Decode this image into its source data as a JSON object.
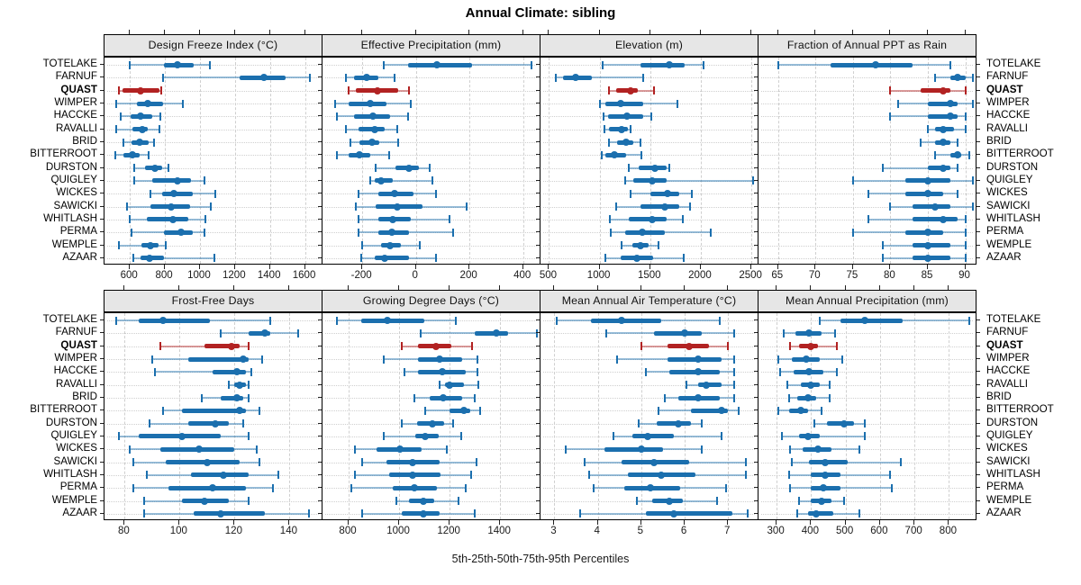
{
  "title": "Annual Climate: sibling",
  "caption": "5th-25th-50th-75th-95th Percentiles",
  "colors": {
    "normal": "#1b6fae",
    "normal_light": "rgba(27,111,174,0.45)",
    "highlight": "#b22222",
    "highlight_light": "rgba(178,34,34,0.45)",
    "strip_bg": "#e6e6e6",
    "grid": "#cfcfcf",
    "border": "#000000"
  },
  "stations": [
    "TOTELAKE",
    "FARNUF",
    "QUAST",
    "WIMPER",
    "HACCKE",
    "RAVALLI",
    "BRID",
    "BITTERROOT",
    "DURSTON",
    "QUIGLEY",
    "WICKES",
    "SAWICKI",
    "WHITLASH",
    "PERMA",
    "WEMPLE",
    "AZAAR"
  ],
  "highlight_station": "QUAST",
  "chart_data": {
    "type": "percentile-dotplot",
    "percentiles": [
      5,
      25,
      50,
      75,
      95
    ],
    "layout": {
      "rows": 2,
      "cols": 4
    },
    "grid": true,
    "panels": [
      {
        "title": "Design Freeze Index (°C)",
        "ticks": [
          600,
          800,
          1000,
          1200,
          1400,
          1600
        ],
        "xlim": [
          460,
          1700
        ],
        "values": [
          [
            600,
            795,
            870,
            965,
            1055
          ],
          [
            790,
            1225,
            1365,
            1490,
            1630
          ],
          [
            535,
            560,
            660,
            770,
            780
          ],
          [
            520,
            640,
            700,
            790,
            905
          ],
          [
            545,
            605,
            660,
            730,
            775
          ],
          [
            520,
            615,
            670,
            700,
            770
          ],
          [
            565,
            610,
            655,
            705,
            740
          ],
          [
            515,
            565,
            615,
            655,
            705
          ],
          [
            625,
            685,
            745,
            785,
            820
          ],
          [
            625,
            725,
            870,
            950,
            1025
          ],
          [
            715,
            785,
            850,
            960,
            1090
          ],
          [
            585,
            715,
            835,
            945,
            1060
          ],
          [
            600,
            695,
            845,
            935,
            1030
          ],
          [
            610,
            795,
            890,
            960,
            1025
          ],
          [
            535,
            665,
            715,
            765,
            805
          ],
          [
            620,
            660,
            710,
            795,
            1080
          ]
        ]
      },
      {
        "title": "Effective Precipitation (mm)",
        "ticks": [
          -200,
          0,
          200,
          400
        ],
        "xlim": [
          -345,
          465
        ],
        "values": [
          [
            -120,
            -30,
            80,
            210,
            430
          ],
          [
            -260,
            -230,
            -185,
            -140,
            -80
          ],
          [
            -250,
            -225,
            -145,
            -65,
            -25
          ],
          [
            -300,
            -250,
            -170,
            -110,
            -20
          ],
          [
            -295,
            -230,
            -160,
            -95,
            -30
          ],
          [
            -260,
            -215,
            -155,
            -115,
            -70
          ],
          [
            -245,
            -210,
            -165,
            -135,
            -65
          ],
          [
            -295,
            -250,
            -210,
            -170,
            -100
          ],
          [
            -150,
            -75,
            -25,
            10,
            50
          ],
          [
            -170,
            -155,
            -130,
            -85,
            60
          ],
          [
            -215,
            -140,
            -80,
            -10,
            75
          ],
          [
            -225,
            -150,
            -70,
            25,
            190
          ],
          [
            -215,
            -140,
            -85,
            -20,
            125
          ],
          [
            -215,
            -140,
            -90,
            -25,
            140
          ],
          [
            -200,
            -130,
            -95,
            -55,
            15
          ],
          [
            -205,
            -155,
            -115,
            -25,
            75
          ]
        ]
      },
      {
        "title": "Elevation (m)",
        "ticks": [
          500,
          1000,
          1500,
          2000,
          2500
        ],
        "xlim": [
          425,
          2570
        ],
        "values": [
          [
            1030,
            1400,
            1690,
            1840,
            2030
          ],
          [
            570,
            640,
            760,
            920,
            1430
          ],
          [
            1090,
            1160,
            1310,
            1380,
            1540
          ],
          [
            1000,
            1060,
            1210,
            1430,
            1770
          ],
          [
            1040,
            1080,
            1270,
            1430,
            1510
          ],
          [
            1050,
            1090,
            1220,
            1280,
            1310
          ],
          [
            1090,
            1170,
            1260,
            1330,
            1400
          ],
          [
            1020,
            1060,
            1150,
            1260,
            1410
          ],
          [
            1290,
            1390,
            1550,
            1660,
            1690
          ],
          [
            1250,
            1330,
            1520,
            1660,
            2520
          ],
          [
            1310,
            1500,
            1670,
            1790,
            1910
          ],
          [
            1160,
            1400,
            1640,
            1790,
            1890
          ],
          [
            1100,
            1290,
            1520,
            1660,
            1820
          ],
          [
            1110,
            1250,
            1420,
            1640,
            2100
          ],
          [
            1220,
            1320,
            1400,
            1480,
            1580
          ],
          [
            1060,
            1210,
            1370,
            1530,
            1830
          ]
        ]
      },
      {
        "title": "Fraction of Annual PPT as Rain",
        "ticks": [
          65,
          70,
          75,
          80,
          85,
          90
        ],
        "xlim": [
          62.5,
          91.5
        ],
        "values": [
          [
            65,
            72,
            78,
            83,
            88
          ],
          [
            86,
            88,
            89,
            90,
            91
          ],
          [
            80,
            84,
            87,
            88,
            90
          ],
          [
            81,
            85,
            88,
            89,
            91
          ],
          [
            80,
            85,
            88,
            89,
            90
          ],
          [
            85,
            86,
            87,
            88.5,
            90
          ],
          [
            84,
            86,
            87,
            88,
            89
          ],
          [
            86,
            88,
            89,
            89.5,
            90.5
          ],
          [
            79,
            85,
            87,
            88,
            89
          ],
          [
            75,
            82,
            85,
            88,
            91
          ],
          [
            77,
            82,
            85,
            87,
            89
          ],
          [
            80,
            83,
            86,
            88,
            91
          ],
          [
            77,
            83,
            87,
            89,
            90
          ],
          [
            75,
            82,
            85,
            87,
            90
          ],
          [
            79,
            83,
            85,
            88,
            90
          ],
          [
            79,
            83,
            85,
            88,
            90
          ]
        ]
      },
      {
        "title": "Frost-Free Days",
        "ticks": [
          80,
          100,
          120,
          140
        ],
        "xlim": [
          73,
          152
        ],
        "values": [
          [
            77,
            85,
            94,
            111,
            133
          ],
          [
            115,
            125,
            131,
            133,
            143
          ],
          [
            93,
            109,
            119,
            122,
            125
          ],
          [
            90,
            103,
            123,
            125,
            130
          ],
          [
            91,
            112,
            121,
            124,
            126
          ],
          [
            118,
            120,
            122,
            124,
            125
          ],
          [
            108,
            115,
            121,
            123,
            125
          ],
          [
            94,
            101,
            122,
            124,
            129
          ],
          [
            89,
            103,
            113,
            118,
            123
          ],
          [
            78,
            85,
            101,
            115,
            125
          ],
          [
            82,
            93,
            107,
            120,
            128
          ],
          [
            83,
            95,
            110,
            122,
            129
          ],
          [
            88,
            104,
            116,
            125,
            136
          ],
          [
            83,
            96,
            112,
            124,
            134
          ],
          [
            87,
            101,
            109,
            118,
            125
          ],
          [
            87,
            105,
            115,
            131,
            147
          ]
        ]
      },
      {
        "title": "Growing Degree Days (°C)",
        "ticks": [
          800,
          1000,
          1200,
          1400
        ],
        "xlim": [
          700,
          1560
        ],
        "values": [
          [
            755,
            850,
            955,
            1100,
            1225
          ],
          [
            1085,
            1300,
            1385,
            1430,
            1545
          ],
          [
            1010,
            1075,
            1145,
            1205,
            1290
          ],
          [
            940,
            1075,
            1160,
            1250,
            1310
          ],
          [
            1020,
            1075,
            1170,
            1265,
            1310
          ],
          [
            1160,
            1180,
            1200,
            1255,
            1315
          ],
          [
            1060,
            1120,
            1175,
            1250,
            1300
          ],
          [
            1105,
            1200,
            1255,
            1280,
            1320
          ],
          [
            1010,
            1070,
            1130,
            1180,
            1215
          ],
          [
            940,
            1065,
            1105,
            1155,
            1245
          ],
          [
            825,
            910,
            1005,
            1090,
            1190
          ],
          [
            855,
            950,
            1055,
            1160,
            1305
          ],
          [
            825,
            960,
            1055,
            1165,
            1285
          ],
          [
            810,
            975,
            1060,
            1150,
            1265
          ],
          [
            990,
            1040,
            1095,
            1140,
            1235
          ],
          [
            855,
            1010,
            1095,
            1160,
            1300
          ]
        ]
      },
      {
        "title": "Mean Annual Air Temperature (°C)",
        "ticks": [
          3,
          4,
          5,
          6,
          7
        ],
        "xlim": [
          2.7,
          7.7
        ],
        "values": [
          [
            3.05,
            3.85,
            4.55,
            5.45,
            6.8
          ],
          [
            4.2,
            5.3,
            6.0,
            6.4,
            7.15
          ],
          [
            5.0,
            5.6,
            6.1,
            6.55,
            7.0
          ],
          [
            4.45,
            5.6,
            6.3,
            6.85,
            7.15
          ],
          [
            5.1,
            5.65,
            6.3,
            6.8,
            7.15
          ],
          [
            6.05,
            6.3,
            6.5,
            6.85,
            7.15
          ],
          [
            5.55,
            5.85,
            6.3,
            6.8,
            7.15
          ],
          [
            5.4,
            6.15,
            6.85,
            7.0,
            7.25
          ],
          [
            4.95,
            5.35,
            5.85,
            6.15,
            6.4
          ],
          [
            4.35,
            4.8,
            5.15,
            5.75,
            6.85
          ],
          [
            3.25,
            4.15,
            5.0,
            5.5,
            6.4
          ],
          [
            3.7,
            4.55,
            5.3,
            6.1,
            7.4
          ],
          [
            3.8,
            4.7,
            5.45,
            6.25,
            7.4
          ],
          [
            3.9,
            4.6,
            5.2,
            5.9,
            6.95
          ],
          [
            4.9,
            5.25,
            5.65,
            5.95,
            6.75
          ],
          [
            3.6,
            5.1,
            5.75,
            7.1,
            7.45
          ]
        ]
      },
      {
        "title": "Mean Annual Precipitation (mm)",
        "ticks": [
          300,
          400,
          500,
          600,
          700,
          800
        ],
        "xlim": [
          250,
          880
        ],
        "values": [
          [
            425,
            485,
            555,
            665,
            860
          ],
          [
            320,
            355,
            395,
            430,
            470
          ],
          [
            340,
            365,
            400,
            420,
            475
          ],
          [
            305,
            345,
            385,
            425,
            490
          ],
          [
            310,
            350,
            395,
            435,
            475
          ],
          [
            330,
            370,
            400,
            425,
            455
          ],
          [
            335,
            360,
            390,
            415,
            455
          ],
          [
            305,
            335,
            370,
            390,
            430
          ],
          [
            410,
            445,
            495,
            525,
            555
          ],
          [
            315,
            365,
            390,
            425,
            555
          ],
          [
            340,
            375,
            420,
            460,
            540
          ],
          [
            345,
            395,
            440,
            505,
            660
          ],
          [
            335,
            400,
            440,
            485,
            630
          ],
          [
            340,
            400,
            435,
            485,
            635
          ],
          [
            365,
            400,
            430,
            460,
            495
          ],
          [
            360,
            390,
            415,
            465,
            540
          ]
        ]
      }
    ]
  }
}
